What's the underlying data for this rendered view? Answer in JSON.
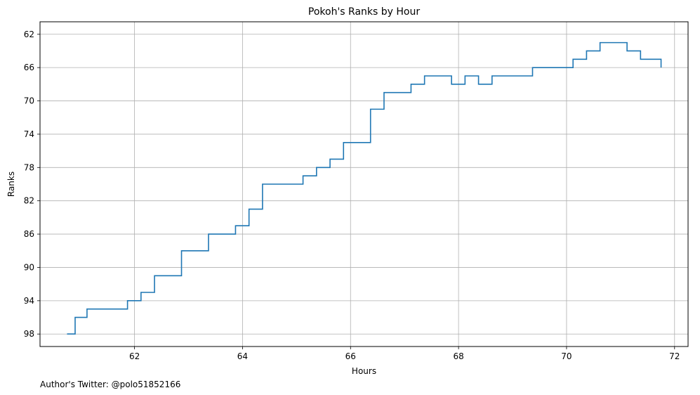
{
  "chart_data": {
    "type": "line",
    "title": "Pokoh's Ranks by Hour",
    "xlabel": "Hours",
    "ylabel": "Ranks",
    "annotation": "Author's Twitter: @polo51852166",
    "xlim": [
      60.25,
      72.25
    ],
    "ylim": [
      99.5,
      60.5
    ],
    "y_inverted": true,
    "xticks": [
      62,
      64,
      66,
      68,
      70,
      72
    ],
    "yticks": [
      62,
      66,
      70,
      74,
      78,
      82,
      86,
      90,
      94,
      98
    ],
    "grid": true,
    "legend": "none",
    "step": "post",
    "series": [
      {
        "color": "#1f77b4",
        "x": [
          60.75,
          60.9,
          61.12,
          61.87,
          62.12,
          62.37,
          62.87,
          63.37,
          63.87,
          64.12,
          64.37,
          65.12,
          65.37,
          65.62,
          65.87,
          66.37,
          66.62,
          67.12,
          67.37,
          67.87,
          68.12,
          68.37,
          68.62,
          69.37,
          70.12,
          70.37,
          70.62,
          71.12,
          71.37,
          71.75
        ],
        "y": [
          98,
          96,
          95,
          94,
          93,
          91,
          88,
          86,
          85,
          83,
          80,
          79,
          78,
          77,
          75,
          71,
          69,
          68,
          67,
          68,
          67,
          68,
          67,
          66,
          65,
          64,
          63,
          64,
          65,
          66
        ]
      }
    ]
  }
}
